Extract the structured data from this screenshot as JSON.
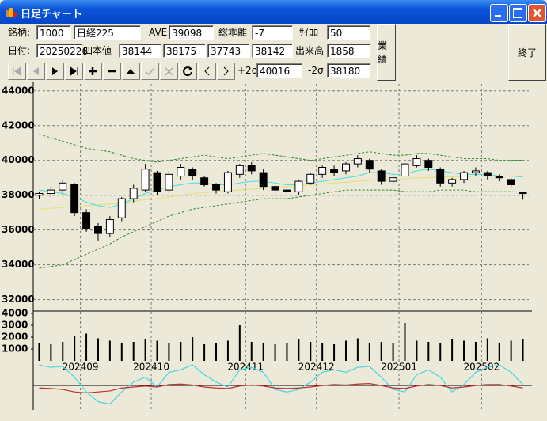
{
  "window": {
    "title": "日足チャート"
  },
  "form": {
    "code_label": "銘柄:",
    "code": "1000",
    "name": "日経225",
    "ave_label": "AVE",
    "ave": "39098",
    "deviation_label": "総乖離",
    "deviation": "-7",
    "dice_label": "ｻｲｺﾛ",
    "dice": "50",
    "date_label": "日付:",
    "date": "20250226",
    "ohlc_label": "四本値",
    "open": "38144",
    "high": "38175",
    "low": "37743",
    "close": "38142",
    "volume_label": "出来高",
    "volume": "1858",
    "plus2s_label": "+2σ",
    "plus2s": "40016",
    "minus2s_label": "-2σ",
    "minus2s": "38180"
  },
  "buttons": {
    "results": "業績",
    "exit": "終了"
  },
  "chart_data": [
    {
      "type": "candlestick",
      "categories": [
        null,
        null,
        null,
        null,
        "202409",
        null,
        null,
        null,
        null,
        null,
        "202410",
        null,
        null,
        null,
        null,
        null,
        null,
        null,
        "202411",
        null,
        null,
        null,
        null,
        null,
        "202412",
        null,
        null,
        null,
        null,
        null,
        null,
        "202501",
        null,
        null,
        null,
        null,
        null,
        null,
        "202502",
        null,
        null,
        null
      ],
      "open": [
        38000,
        38100,
        38300,
        38600,
        37000,
        36200,
        35800,
        36700,
        37800,
        38300,
        39300,
        38300,
        39100,
        39500,
        39000,
        38600,
        38200,
        39200,
        39700,
        39300,
        38500,
        38300,
        38200,
        38700,
        39200,
        39500,
        39400,
        39800,
        40000,
        39400,
        38800,
        39100,
        39700,
        40000,
        39500,
        38700,
        38900,
        39300,
        39300,
        39100,
        38900,
        38144
      ],
      "high": [
        38200,
        38500,
        38900,
        38700,
        37200,
        36400,
        36800,
        37900,
        38600,
        39800,
        39400,
        39400,
        39800,
        39600,
        39100,
        38700,
        39400,
        39800,
        39900,
        39500,
        38600,
        38400,
        38900,
        39300,
        39700,
        39700,
        39900,
        40300,
        40100,
        39500,
        39200,
        39900,
        40300,
        40100,
        39600,
        39000,
        39400,
        39600,
        39400,
        39200,
        39000,
        38175
      ],
      "low": [
        37800,
        37900,
        38100,
        36800,
        35900,
        35400,
        35600,
        36500,
        37600,
        38200,
        38000,
        38100,
        38900,
        38900,
        38500,
        38100,
        38100,
        39000,
        39200,
        38300,
        38100,
        38000,
        38000,
        38600,
        39000,
        39100,
        39200,
        39600,
        39300,
        38600,
        38600,
        38900,
        39600,
        39400,
        38500,
        38500,
        38700,
        39100,
        38900,
        38800,
        38400,
        37743
      ],
      "close": [
        38100,
        38300,
        38700,
        37000,
        36100,
        35800,
        36600,
        37800,
        38400,
        39500,
        38200,
        39200,
        39600,
        39100,
        38600,
        38300,
        39300,
        39700,
        39400,
        38500,
        38300,
        38200,
        38800,
        39200,
        39600,
        39300,
        39800,
        40100,
        39500,
        38800,
        39000,
        39800,
        40100,
        39600,
        38700,
        38900,
        39300,
        39400,
        39100,
        39000,
        38600,
        38142
      ],
      "lines": [
        {
          "color": "#2a8a2a",
          "dashed": true,
          "values": [
            41500,
            41300,
            41100,
            40900,
            40700,
            40600,
            40500,
            40300,
            40100,
            40000,
            39900,
            40000,
            40100,
            40200,
            40300,
            40200,
            40100,
            40200,
            40300,
            40400,
            40300,
            40200,
            40100,
            40000,
            40100,
            40200,
            40300,
            40400,
            40500,
            40400,
            40300,
            40300,
            40400,
            40400,
            40300,
            40200,
            40100,
            40100,
            40100,
            40000,
            40000,
            40016
          ]
        },
        {
          "color": "#2a8a2a",
          "dashed": true,
          "values": [
            33800,
            33900,
            34000,
            34300,
            34600,
            34900,
            35200,
            35600,
            35900,
            36200,
            36500,
            36800,
            37000,
            37200,
            37300,
            37400,
            37500,
            37600,
            37700,
            37800,
            37800,
            37800,
            37900,
            38000,
            38100,
            38200,
            38300,
            38300,
            38300,
            38300,
            38300,
            38200,
            38200,
            38200,
            38300,
            38300,
            38300,
            38200,
            38200,
            38200,
            38200,
            38180
          ]
        },
        {
          "color": "#e6e070",
          "dashed": false,
          "values": [
            37200,
            37250,
            37300,
            37350,
            37400,
            37450,
            37500,
            37550,
            37650,
            37750,
            37800,
            37900,
            38000,
            38100,
            38150,
            38200,
            38250,
            38300,
            38350,
            38400,
            38450,
            38500,
            38550,
            38600,
            38650,
            38700,
            38750,
            38800,
            38850,
            38900,
            38900,
            38950,
            39000,
            39000,
            39050,
            39050,
            39050,
            39100,
            39100,
            39100,
            39100,
            39098
          ]
        },
        {
          "color": "#40e0e0",
          "dashed": false,
          "values": [
            38300,
            38200,
            38100,
            37900,
            37600,
            37400,
            37300,
            37500,
            37800,
            38100,
            38300,
            38500,
            38600,
            38700,
            38700,
            38600,
            38600,
            38700,
            38800,
            38800,
            38700,
            38600,
            38600,
            38700,
            38800,
            38900,
            39000,
            39100,
            39300,
            39300,
            39200,
            39200,
            39400,
            39500,
            39400,
            39300,
            39200,
            39200,
            39200,
            39100,
            39100,
            39050
          ]
        }
      ],
      "ylim": [
        31800,
        44400
      ],
      "yticks": [
        32000,
        34000,
        36000,
        38000,
        40000,
        42000,
        44000
      ],
      "grid": true
    },
    {
      "type": "bar",
      "color": "#000000",
      "values": [
        1500,
        1400,
        1600,
        2100,
        2300,
        1900,
        1700,
        1500,
        1600,
        1800,
        1700,
        1500,
        1600,
        2000,
        1400,
        1500,
        1700,
        3000,
        1600,
        1500,
        1400,
        1500,
        1800,
        1600,
        1500,
        1400,
        1700,
        1900,
        1500,
        1600,
        1500,
        3200,
        1700,
        1600,
        1500,
        1800,
        1700,
        1600,
        1900,
        1500,
        1700,
        1858
      ],
      "ylim": [
        0,
        4200
      ],
      "yticks": [
        1000,
        2000,
        3000,
        4000
      ]
    },
    {
      "type": "line",
      "ylim": [
        0,
        100
      ],
      "series": [
        {
          "color": "#40d8e8",
          "values": [
            95,
            90,
            92,
            70,
            40,
            20,
            15,
            40,
            60,
            70,
            50,
            80,
            85,
            95,
            75,
            60,
            50,
            85,
            90,
            80,
            45,
            40,
            45,
            60,
            80,
            85,
            80,
            90,
            92,
            70,
            45,
            40,
            75,
            85,
            70,
            40,
            55,
            80,
            90,
            95,
            80,
            55
          ]
        },
        {
          "color": "#c03030",
          "values": [
            48,
            47,
            45,
            40,
            38,
            40,
            42,
            48,
            50,
            52,
            50,
            55,
            56,
            54,
            50,
            48,
            47,
            52,
            54,
            52,
            48,
            47,
            48,
            50,
            53,
            55,
            54,
            56,
            57,
            53,
            48,
            47,
            52,
            55,
            53,
            48,
            50,
            53,
            55,
            55,
            52,
            48
          ]
        }
      ]
    }
  ]
}
